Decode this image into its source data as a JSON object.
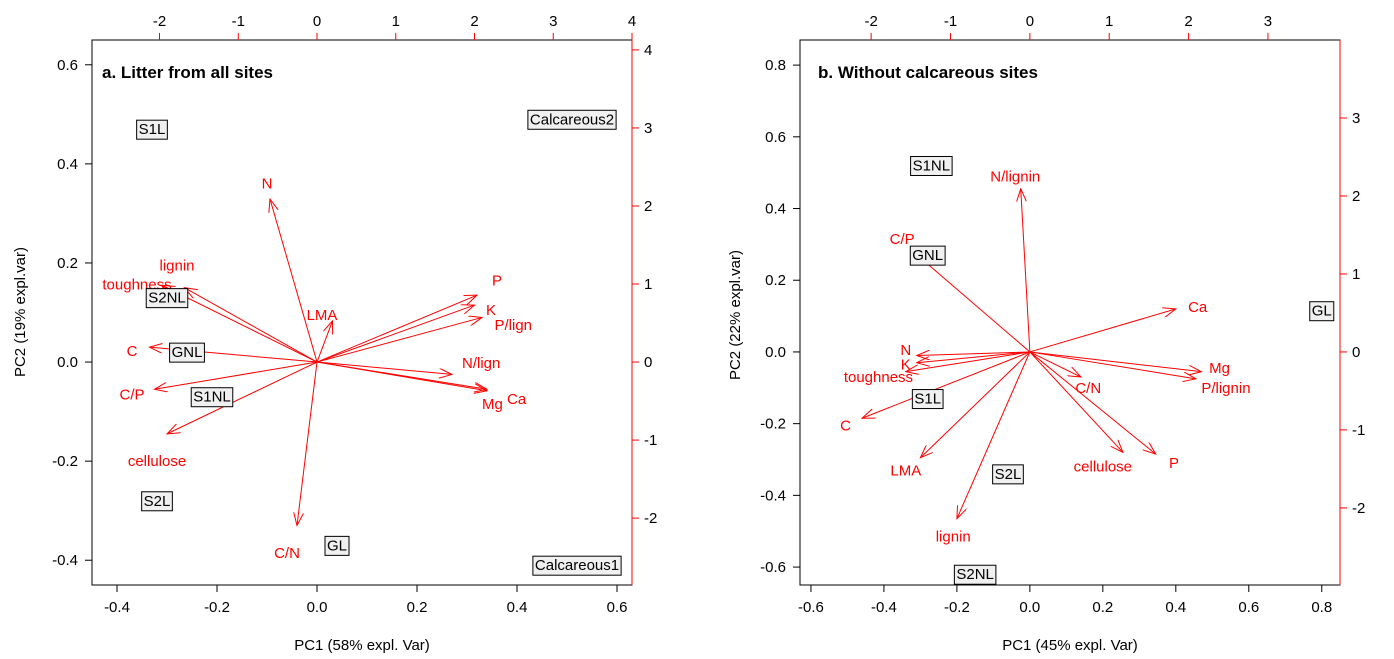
{
  "chart_data": [
    {
      "type": "scatter",
      "title": "a. Litter from all sites",
      "xlabel": "PC1 (58% expl. Var)",
      "ylabel": "PC2 (19%  expl.var)",
      "xlim": [
        -0.45,
        0.63
      ],
      "ylim": [
        -0.45,
        0.65
      ],
      "x_ticks": [
        -0.4,
        -0.2,
        0.0,
        0.2,
        0.4,
        0.6
      ],
      "x_tick_labels": [
        "-0.4",
        "-0.2",
        "0.0",
        "0.2",
        "0.4",
        "0.6"
      ],
      "y_ticks": [
        -0.4,
        -0.2,
        0.0,
        0.2,
        0.4,
        0.6
      ],
      "y_tick_labels": [
        "-0.4",
        "-0.2",
        "0.0",
        "0.2",
        "0.4",
        "0.6"
      ],
      "top_axis": {
        "ticks": [
          -2,
          -1,
          0,
          1,
          2,
          3,
          4
        ],
        "labels": [
          "-2",
          "-1",
          "0",
          "1",
          "2",
          "3",
          "4"
        ],
        "data_per_unit": 0.1575
      },
      "right_axis": {
        "ticks": [
          -2,
          -1,
          0,
          1,
          2,
          3,
          4
        ],
        "labels": [
          "-2",
          "-1",
          "0",
          "1",
          "2",
          "3",
          "4"
        ],
        "data_per_unit": 0.1575
      },
      "colors": {
        "arrow": "#ff0000",
        "box_border": "#000000",
        "box_fill": "#f0f0f0",
        "axis_right": "#ff0000"
      },
      "sites": [
        {
          "label": "S1L",
          "x": -0.33,
          "y": 0.47
        },
        {
          "label": "Calcareous2",
          "x": 0.51,
          "y": 0.49
        },
        {
          "label": "S2NL",
          "x": -0.3,
          "y": 0.13
        },
        {
          "label": "GNL",
          "x": -0.26,
          "y": 0.02
        },
        {
          "label": "S1NL",
          "x": -0.21,
          "y": -0.07
        },
        {
          "label": "S2L",
          "x": -0.32,
          "y": -0.28
        },
        {
          "label": "GL",
          "x": 0.04,
          "y": -0.37
        },
        {
          "label": "Calcareous1",
          "x": 0.52,
          "y": -0.41
        }
      ],
      "loadings": [
        {
          "label": "N",
          "x": -0.094,
          "y": 0.329,
          "lx": -0.1,
          "ly": 0.36,
          "anchor": "middle"
        },
        {
          "label": "lignin",
          "x": -0.265,
          "y": 0.15,
          "lx": -0.28,
          "ly": 0.195,
          "anchor": "middle"
        },
        {
          "label": "toughness",
          "x": -0.31,
          "y": 0.155,
          "lx": -0.36,
          "ly": 0.157,
          "anchor": "middle"
        },
        {
          "label": "LMA",
          "x": 0.031,
          "y": 0.083,
          "lx": 0.01,
          "ly": 0.095,
          "anchor": "middle"
        },
        {
          "label": "C",
          "x": -0.335,
          "y": 0.03,
          "lx": -0.37,
          "ly": 0.022,
          "anchor": "middle"
        },
        {
          "label": "C/P",
          "x": -0.325,
          "y": -0.055,
          "lx": -0.37,
          "ly": -0.065,
          "anchor": "middle"
        },
        {
          "label": "cellulose",
          "x": -0.3,
          "y": -0.145,
          "lx": -0.32,
          "ly": -0.2,
          "anchor": "middle"
        },
        {
          "label": "C/N",
          "x": -0.04,
          "y": -0.33,
          "lx": -0.06,
          "ly": -0.385,
          "anchor": "middle"
        },
        {
          "label": "P",
          "x": 0.32,
          "y": 0.135,
          "lx": 0.36,
          "ly": 0.165,
          "anchor": "middle"
        },
        {
          "label": "K",
          "x": 0.315,
          "y": 0.115,
          "lx": 0.338,
          "ly": 0.105,
          "anchor": "start"
        },
        {
          "label": "P/lign",
          "x": 0.33,
          "y": 0.09,
          "lx": 0.355,
          "ly": 0.075,
          "anchor": "start"
        },
        {
          "label": "N/lign",
          "x": 0.27,
          "y": -0.025,
          "lx": 0.29,
          "ly": -0.002,
          "anchor": "start"
        },
        {
          "label": "Ca",
          "x": 0.34,
          "y": -0.055,
          "lx": 0.38,
          "ly": -0.075,
          "anchor": "start"
        },
        {
          "label": "Mg",
          "x": 0.34,
          "y": -0.058,
          "lx": 0.33,
          "ly": -0.085,
          "anchor": "start"
        }
      ]
    },
    {
      "type": "scatter",
      "title": "b. Without calcareous sites",
      "xlabel": "PC1 (45% expl. Var)",
      "ylabel": "PC2 (22% expl.var)",
      "xlim": [
        -0.63,
        0.85
      ],
      "ylim": [
        -0.65,
        0.87
      ],
      "x_ticks": [
        -0.6,
        -0.4,
        -0.2,
        0.0,
        0.2,
        0.4,
        0.6,
        0.8
      ],
      "x_tick_labels": [
        "-0.6",
        "-0.4",
        "-0.2",
        "0.0",
        "0.2",
        "0.4",
        "0.6",
        "0.8"
      ],
      "y_ticks": [
        -0.6,
        -0.4,
        -0.2,
        0.0,
        0.2,
        0.4,
        0.6,
        0.8
      ],
      "y_tick_labels": [
        "-0.6",
        "-0.4",
        "-0.2",
        "0.0",
        "0.2",
        "0.4",
        "0.6",
        "0.8"
      ],
      "top_axis": {
        "ticks": [
          -2,
          -1,
          0,
          1,
          2,
          3
        ],
        "labels": [
          "-2",
          "-1",
          "0",
          "1",
          "2",
          "3"
        ],
        "data_per_unit": 0.2175
      },
      "right_axis": {
        "ticks": [
          -2,
          -1,
          0,
          1,
          2,
          3
        ],
        "labels": [
          "-2",
          "-1",
          "0",
          "1",
          "2",
          "3"
        ],
        "data_per_unit": 0.2175
      },
      "colors": {
        "arrow": "#ff0000",
        "box_border": "#000000",
        "box_fill": "#f0f0f0",
        "axis_right": "#ff0000"
      },
      "sites": [
        {
          "label": "S1NL",
          "x": -0.27,
          "y": 0.52
        },
        {
          "label": "GNL",
          "x": -0.28,
          "y": 0.27
        },
        {
          "label": "GL",
          "x": 0.8,
          "y": 0.115
        },
        {
          "label": "S1L",
          "x": -0.28,
          "y": -0.13
        },
        {
          "label": "S2L",
          "x": -0.06,
          "y": -0.34
        },
        {
          "label": "S2NL",
          "x": -0.15,
          "y": -0.62
        }
      ],
      "loadings": [
        {
          "label": "N/lignin",
          "x": -0.025,
          "y": 0.455,
          "lx": -0.04,
          "ly": 0.49,
          "anchor": "middle"
        },
        {
          "label": "C/P",
          "x": -0.32,
          "y": 0.28,
          "lx": -0.35,
          "ly": 0.315,
          "anchor": "middle"
        },
        {
          "label": "Ca",
          "x": 0.4,
          "y": 0.12,
          "lx": 0.46,
          "ly": 0.125,
          "anchor": "middle"
        },
        {
          "label": "Mg",
          "x": 0.47,
          "y": -0.055,
          "lx": 0.52,
          "ly": -0.045,
          "anchor": "middle"
        },
        {
          "label": "P/lignin",
          "x": 0.455,
          "y": -0.075,
          "lx": 0.47,
          "ly": -0.1,
          "anchor": "start"
        },
        {
          "label": "C/N",
          "x": 0.14,
          "y": -0.07,
          "lx": 0.16,
          "ly": -0.1,
          "anchor": "middle"
        },
        {
          "label": "cellulose",
          "x": 0.255,
          "y": -0.28,
          "lx": 0.2,
          "ly": -0.32,
          "anchor": "middle"
        },
        {
          "label": "P",
          "x": 0.345,
          "y": -0.285,
          "lx": 0.395,
          "ly": -0.31,
          "anchor": "middle"
        },
        {
          "label": "N",
          "x": -0.31,
          "y": -0.01,
          "lx": -0.34,
          "ly": 0.005,
          "anchor": "middle"
        },
        {
          "label": "K",
          "x": -0.31,
          "y": -0.03,
          "lx": -0.34,
          "ly": -0.035,
          "anchor": "middle"
        },
        {
          "label": "toughness",
          "x": -0.34,
          "y": -0.055,
          "lx": -0.415,
          "ly": -0.07,
          "anchor": "middle"
        },
        {
          "label": "C",
          "x": -0.46,
          "y": -0.185,
          "lx": -0.505,
          "ly": -0.205,
          "anchor": "middle"
        },
        {
          "label": "LMA",
          "x": -0.3,
          "y": -0.295,
          "lx": -0.34,
          "ly": -0.33,
          "anchor": "middle"
        },
        {
          "label": "lignin",
          "x": -0.2,
          "y": -0.465,
          "lx": -0.21,
          "ly": -0.515,
          "anchor": "middle"
        }
      ]
    }
  ]
}
